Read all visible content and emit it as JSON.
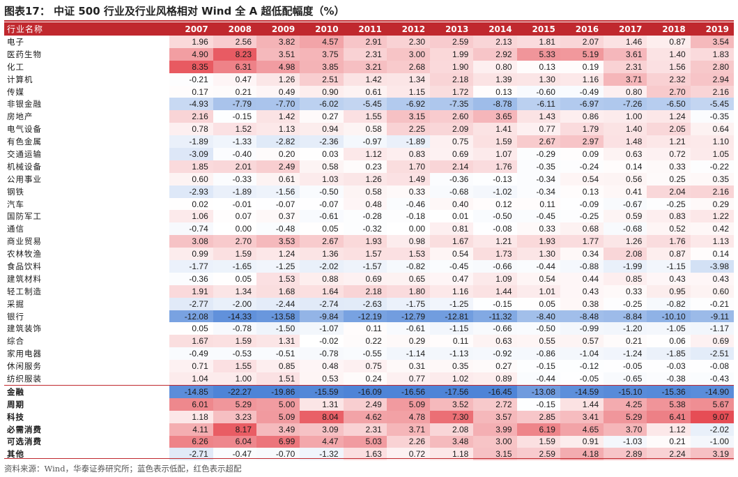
{
  "title": "图表17：  中证 500 行业及行业风格相对 Wind 全 A 超低配幅度（%）",
  "source": "资料来源：Wind，华泰证券研究所；蓝色表示低配，红色表示超配",
  "colors": {
    "header": "#c0282e",
    "positive": "#e0202a",
    "negative": "#2f6fd0"
  },
  "table": {
    "header_label": "行业名称",
    "years": [
      "2007",
      "2008",
      "2009",
      "2010",
      "2011",
      "2012",
      "2013",
      "2014",
      "2015",
      "2016",
      "2017",
      "2018",
      "2019"
    ],
    "rows": [
      {
        "name": "电子",
        "values": [
          "1.96",
          "2.56",
          "3.82",
          "4.57",
          "2.91",
          "2.30",
          "2.59",
          "2.13",
          "1.81",
          "2.07",
          "1.46",
          "0.87",
          "3.54"
        ]
      },
      {
        "name": "医药生物",
        "values": [
          "4.90",
          "8.23",
          "3.51",
          "3.75",
          "2.31",
          "3.00",
          "1.99",
          "2.92",
          "5.33",
          "5.19",
          "3.61",
          "1.40",
          "1.83"
        ]
      },
      {
        "name": "化工",
        "values": [
          "8.35",
          "6.31",
          "4.98",
          "3.85",
          "3.21",
          "2.68",
          "1.90",
          "0.80",
          "0.13",
          "0.19",
          "2.31",
          "1.56",
          "2.80"
        ]
      },
      {
        "name": "计算机",
        "values": [
          "-0.21",
          "0.47",
          "1.26",
          "2.51",
          "1.42",
          "1.34",
          "2.18",
          "1.39",
          "1.30",
          "1.16",
          "3.71",
          "2.32",
          "2.94"
        ]
      },
      {
        "name": "传媒",
        "values": [
          "0.17",
          "0.21",
          "0.49",
          "0.90",
          "0.61",
          "1.15",
          "1.72",
          "0.13",
          "-0.60",
          "-0.49",
          "0.80",
          "2.70",
          "2.16"
        ]
      },
      {
        "name": "非银金融",
        "values": [
          "-4.93",
          "-7.79",
          "-7.70",
          "-6.02",
          "-5.45",
          "-6.92",
          "-7.35",
          "-8.78",
          "-6.11",
          "-6.97",
          "-7.26",
          "-6.50",
          "-5.45"
        ]
      },
      {
        "name": "房地产",
        "values": [
          "2.16",
          "-0.15",
          "1.42",
          "0.27",
          "1.55",
          "3.15",
          "2.60",
          "3.65",
          "1.43",
          "0.86",
          "1.00",
          "1.24",
          "-0.35"
        ]
      },
      {
        "name": "电气设备",
        "values": [
          "0.78",
          "1.52",
          "1.13",
          "0.94",
          "0.58",
          "2.25",
          "2.09",
          "1.41",
          "0.77",
          "1.79",
          "1.40",
          "2.05",
          "0.64"
        ]
      },
      {
        "name": "有色金属",
        "values": [
          "-1.89",
          "-1.33",
          "-2.82",
          "-2.36",
          "-0.97",
          "-1.89",
          "0.75",
          "1.59",
          "2.67",
          "2.97",
          "1.48",
          "1.21",
          "1.10"
        ]
      },
      {
        "name": "交通运输",
        "values": [
          "-3.09",
          "-0.40",
          "0.20",
          "0.03",
          "1.12",
          "0.83",
          "0.69",
          "1.07",
          "-0.29",
          "0.09",
          "0.63",
          "0.72",
          "1.05"
        ]
      },
      {
        "name": "机械设备",
        "values": [
          "1.85",
          "2.01",
          "2.49",
          "0.58",
          "0.23",
          "1.70",
          "2.14",
          "1.76",
          "-0.35",
          "-0.24",
          "0.14",
          "0.33",
          "-0.22"
        ]
      },
      {
        "name": "公用事业",
        "values": [
          "0.60",
          "-0.33",
          "0.61",
          "1.03",
          "1.26",
          "1.49",
          "-0.36",
          "-0.13",
          "-0.34",
          "0.54",
          "0.56",
          "0.25",
          "0.35"
        ]
      },
      {
        "name": "钢铁",
        "values": [
          "-2.93",
          "-1.89",
          "-1.56",
          "-0.50",
          "0.58",
          "0.33",
          "-0.68",
          "-1.02",
          "-0.34",
          "0.13",
          "0.41",
          "2.04",
          "2.16"
        ]
      },
      {
        "name": "汽车",
        "values": [
          "0.02",
          "-0.01",
          "-0.07",
          "-0.07",
          "0.48",
          "-0.46",
          "0.40",
          "0.12",
          "0.11",
          "-0.09",
          "-0.67",
          "-0.25",
          "0.29"
        ]
      },
      {
        "name": "国防军工",
        "values": [
          "1.06",
          "0.07",
          "0.37",
          "-0.61",
          "-0.28",
          "-0.18",
          "0.01",
          "-0.50",
          "-0.45",
          "-0.25",
          "0.59",
          "0.83",
          "1.22"
        ]
      },
      {
        "name": "通信",
        "values": [
          "-0.74",
          "0.00",
          "-0.48",
          "0.05",
          "-0.32",
          "0.00",
          "0.81",
          "-0.08",
          "0.33",
          "0.68",
          "-0.68",
          "0.52",
          "0.42"
        ]
      },
      {
        "name": "商业贸易",
        "values": [
          "3.08",
          "2.70",
          "3.53",
          "2.67",
          "1.93",
          "0.98",
          "1.67",
          "1.21",
          "1.93",
          "1.77",
          "1.26",
          "1.76",
          "1.13"
        ]
      },
      {
        "name": "农林牧渔",
        "values": [
          "0.99",
          "1.59",
          "1.24",
          "1.36",
          "1.57",
          "1.53",
          "0.54",
          "1.73",
          "1.30",
          "0.34",
          "2.08",
          "0.87",
          "0.14"
        ]
      },
      {
        "name": "食品饮料",
        "values": [
          "-1.77",
          "-1.65",
          "-1.25",
          "-2.02",
          "-1.57",
          "-0.82",
          "-0.45",
          "-0.66",
          "-0.44",
          "-0.88",
          "-1.99",
          "-1.15",
          "-3.98"
        ]
      },
      {
        "name": "建筑材料",
        "values": [
          "-0.36",
          "0.05",
          "1.53",
          "0.88",
          "0.69",
          "0.65",
          "0.47",
          "1.09",
          "0.54",
          "0.44",
          "0.85",
          "0.43",
          "0.43"
        ]
      },
      {
        "name": "轻工制造",
        "values": [
          "1.91",
          "1.34",
          "1.68",
          "1.64",
          "2.18",
          "1.80",
          "1.16",
          "1.44",
          "1.01",
          "0.43",
          "0.33",
          "0.95",
          "0.60"
        ]
      },
      {
        "name": "采掘",
        "values": [
          "-2.77",
          "-2.00",
          "-2.44",
          "-2.74",
          "-2.63",
          "-1.75",
          "-1.25",
          "-0.15",
          "0.05",
          "0.38",
          "-0.25",
          "-0.82",
          "-0.21"
        ]
      },
      {
        "name": "银行",
        "values": [
          "-12.08",
          "-14.33",
          "-13.58",
          "-9.84",
          "-12.19",
          "-12.79",
          "-12.81",
          "-11.32",
          "-8.40",
          "-8.48",
          "-8.84",
          "-10.10",
          "-9.11"
        ]
      },
      {
        "name": "建筑装饰",
        "values": [
          "0.05",
          "-0.78",
          "-1.50",
          "-1.07",
          "0.11",
          "-0.61",
          "-1.15",
          "-0.66",
          "-0.50",
          "-0.99",
          "-1.20",
          "-1.05",
          "-1.17"
        ]
      },
      {
        "name": "综合",
        "values": [
          "1.67",
          "1.59",
          "1.31",
          "-0.02",
          "0.22",
          "0.29",
          "0.11",
          "0.63",
          "0.55",
          "0.57",
          "0.21",
          "0.06",
          "0.69"
        ]
      },
      {
        "name": "家用电器",
        "values": [
          "-0.49",
          "-0.53",
          "-0.51",
          "-0.78",
          "-0.55",
          "-1.14",
          "-1.13",
          "-0.92",
          "-0.86",
          "-1.04",
          "-1.24",
          "-1.85",
          "-2.51"
        ]
      },
      {
        "name": "休闲服务",
        "values": [
          "0.71",
          "1.55",
          "0.85",
          "0.48",
          "0.75",
          "0.31",
          "0.35",
          "0.27",
          "-0.15",
          "-0.12",
          "-0.05",
          "-0.03",
          "-0.08"
        ]
      },
      {
        "name": "纺织服装",
        "values": [
          "1.04",
          "1.00",
          "1.51",
          "0.53",
          "0.24",
          "0.77",
          "1.02",
          "0.89",
          "-0.44",
          "-0.05",
          "-0.65",
          "-0.38",
          "-0.43"
        ]
      }
    ],
    "summary_rows": [
      {
        "name": "金融",
        "values": [
          "-14.85",
          "-22.27",
          "-19.86",
          "-15.59",
          "-16.09",
          "-16.56",
          "-17.56",
          "-16.45",
          "-13.08",
          "-14.59",
          "-15.10",
          "-15.36",
          "-14.90"
        ]
      },
      {
        "name": "周期",
        "values": [
          "6.01",
          "5.29",
          "5.00",
          "1.31",
          "2.49",
          "5.09",
          "3.52",
          "2.72",
          "-0.15",
          "1.44",
          "4.25",
          "5.38",
          "5.67"
        ]
      },
      {
        "name": "科技",
        "values": [
          "1.18",
          "3.23",
          "5.09",
          "8.04",
          "4.62",
          "4.78",
          "7.30",
          "3.57",
          "2.85",
          "3.41",
          "5.29",
          "6.41",
          "9.07"
        ]
      },
      {
        "name": "必需消费",
        "values": [
          "4.11",
          "8.17",
          "3.49",
          "3.09",
          "2.31",
          "3.71",
          "2.08",
          "3.99",
          "6.19",
          "4.65",
          "3.70",
          "1.12",
          "-2.02"
        ]
      },
      {
        "name": "可选消费",
        "values": [
          "6.26",
          "6.04",
          "6.99",
          "4.47",
          "5.03",
          "2.26",
          "3.48",
          "3.00",
          "1.59",
          "0.91",
          "-1.03",
          "0.21",
          "-1.00"
        ]
      },
      {
        "name": "其他",
        "values": [
          "-2.71",
          "-0.47",
          "-0.70",
          "-1.32",
          "1.63",
          "0.72",
          "1.18",
          "3.15",
          "2.59",
          "4.18",
          "2.89",
          "2.24",
          "3.19"
        ]
      }
    ]
  }
}
